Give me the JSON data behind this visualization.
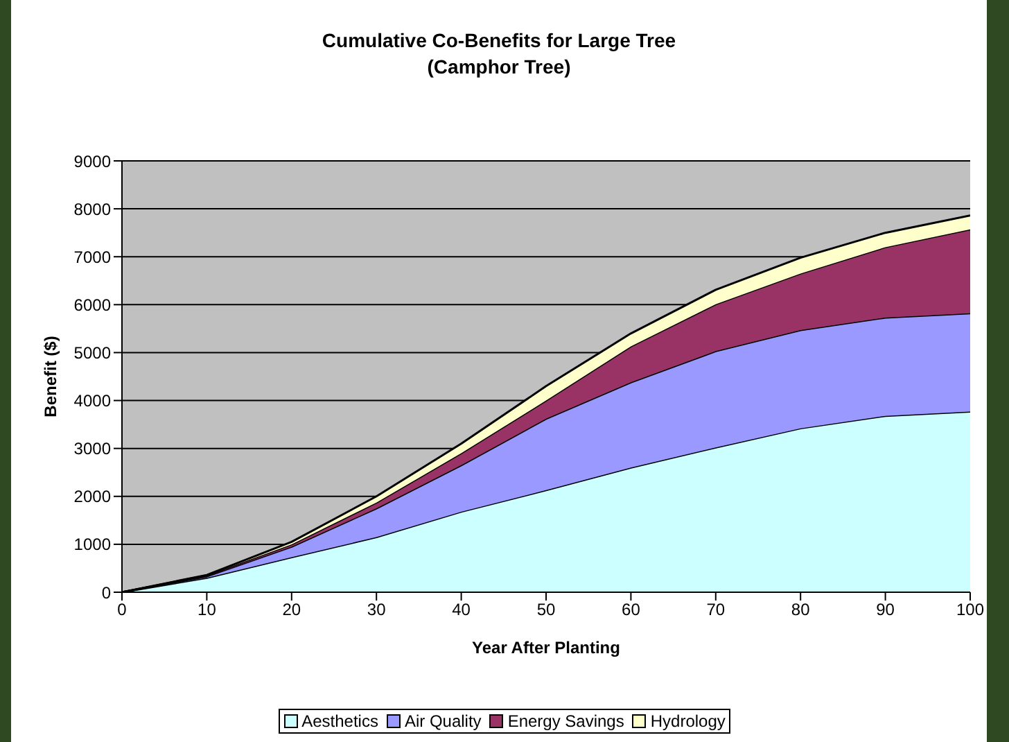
{
  "chart_data": {
    "type": "area",
    "stacked": true,
    "title": "Cumulative Co-Benefits for Large Tree",
    "subtitle": "(Camphor Tree)",
    "xlabel": "Year After Planting",
    "ylabel": "Benefit ($)",
    "x": [
      0,
      10,
      20,
      30,
      40,
      50,
      60,
      70,
      80,
      90,
      100
    ],
    "series": [
      {
        "name": "Aesthetics",
        "color": "#ccffff",
        "values": [
          0,
          300,
          730,
          1150,
          1680,
          2130,
          2600,
          3020,
          3420,
          3680,
          3770
        ]
      },
      {
        "name": "Air Quality",
        "color": "#9999ff",
        "values": [
          0,
          30,
          220,
          600,
          970,
          1490,
          1780,
          2010,
          2050,
          2050,
          2050
        ]
      },
      {
        "name": "Energy Savings",
        "color": "#993366",
        "values": [
          0,
          20,
          50,
          120,
          250,
          380,
          750,
          980,
          1180,
          1470,
          1750
        ]
      },
      {
        "name": "Hydrology",
        "color": "#ffffcc",
        "values": [
          0,
          10,
          50,
          130,
          200,
          300,
          270,
          300,
          330,
          300,
          290
        ]
      }
    ],
    "xlim": [
      0,
      100
    ],
    "xticks": [
      0,
      10,
      20,
      30,
      40,
      50,
      60,
      70,
      80,
      90,
      100
    ],
    "ylim": [
      0,
      9000
    ],
    "yticks": [
      0,
      1000,
      2000,
      3000,
      4000,
      5000,
      6000,
      7000,
      8000,
      9000
    ],
    "grid": "y",
    "legend": "bottom"
  }
}
